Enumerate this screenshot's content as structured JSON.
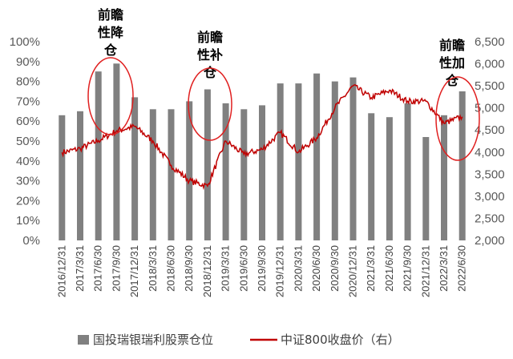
{
  "chart_data": {
    "type": "bar+line",
    "categories": [
      "2016/12/31",
      "2017/3/31",
      "2017/6/30",
      "2017/9/30",
      "2017/12/31",
      "2018/3/31",
      "2018/6/30",
      "2018/9/30",
      "2018/12/31",
      "2019/3/31",
      "2019/6/30",
      "2019/9/30",
      "2019/12/31",
      "2020/3/31",
      "2020/6/30",
      "2020/9/30",
      "2020/12/31",
      "2021/3/31",
      "2021/6/30",
      "2021/9/30",
      "2021/12/31",
      "2022/3/31",
      "2022/6/30"
    ],
    "series": [
      {
        "name": "国投瑞银瑞利股票仓位",
        "type": "bar",
        "axis": "left",
        "color": "#808080",
        "values": [
          0.63,
          0.65,
          0.85,
          0.89,
          0.72,
          0.66,
          0.66,
          0.7,
          0.76,
          0.69,
          0.66,
          0.68,
          0.79,
          0.79,
          0.84,
          0.8,
          0.82,
          0.64,
          0.62,
          0.69,
          0.52,
          0.63,
          0.75
        ]
      },
      {
        "name": "中证800收盘价（右）",
        "type": "line",
        "axis": "right",
        "color": "#c00000",
        "keypoints": [
          {
            "x": "2016/12/31",
            "y": 3990
          },
          {
            "x": "2017/3/31",
            "y": 4080
          },
          {
            "x": "2017/6/30",
            "y": 4260
          },
          {
            "x": "2017/9/30",
            "y": 4480
          },
          {
            "x": "2017/12/31",
            "y": 4580
          },
          {
            "x": "2018/3/31",
            "y": 4250
          },
          {
            "x": "2018/6/30",
            "y": 3700
          },
          {
            "x": "2018/9/30",
            "y": 3350
          },
          {
            "x": "2018/12/31",
            "y": 3230
          },
          {
            "x": "2019/3/31",
            "y": 4250
          },
          {
            "x": "2019/6/30",
            "y": 3950
          },
          {
            "x": "2019/9/30",
            "y": 4060
          },
          {
            "x": "2019/12/31",
            "y": 4440
          },
          {
            "x": "2020/3/31",
            "y": 4000
          },
          {
            "x": "2020/6/30",
            "y": 4320
          },
          {
            "x": "2020/9/30",
            "y": 5000
          },
          {
            "x": "2020/12/31",
            "y": 5500
          },
          {
            "x": "2021/3/31",
            "y": 5230
          },
          {
            "x": "2021/6/30",
            "y": 5400
          },
          {
            "x": "2021/9/30",
            "y": 5150
          },
          {
            "x": "2021/12/31",
            "y": 5150
          },
          {
            "x": "2022/3/31",
            "y": 4650
          },
          {
            "x": "2022/6/30",
            "y": 4800
          }
        ]
      }
    ],
    "y_left": {
      "min": 0,
      "max": 1,
      "ticks": [
        "0%",
        "10%",
        "20%",
        "30%",
        "40%",
        "50%",
        "60%",
        "70%",
        "80%",
        "90%",
        "100%"
      ]
    },
    "y_right": {
      "min": 2000,
      "max": 6500,
      "ticks": [
        "2,000",
        "2,500",
        "3,000",
        "3,500",
        "4,000",
        "4,500",
        "5,000",
        "5,500",
        "6,000",
        "6,500"
      ]
    },
    "annotations": [
      {
        "label_lines": [
          "前瞻",
          "性降",
          "仓"
        ],
        "category": "2017/9/30"
      },
      {
        "label_lines": [
          "前瞻",
          "性补",
          "仓"
        ],
        "category": "2018/12/31"
      },
      {
        "label_lines": [
          "前瞻",
          "性加",
          "仓"
        ],
        "category": "2022/3/31"
      }
    ],
    "legend": {
      "placement": "bottom",
      "items": [
        {
          "label": "国投瑞银瑞利股票仓位",
          "shape": "rect",
          "color": "#808080"
        },
        {
          "label": "中证800收盘价（右）",
          "shape": "line",
          "color": "#c00000"
        }
      ]
    },
    "grid": false
  }
}
